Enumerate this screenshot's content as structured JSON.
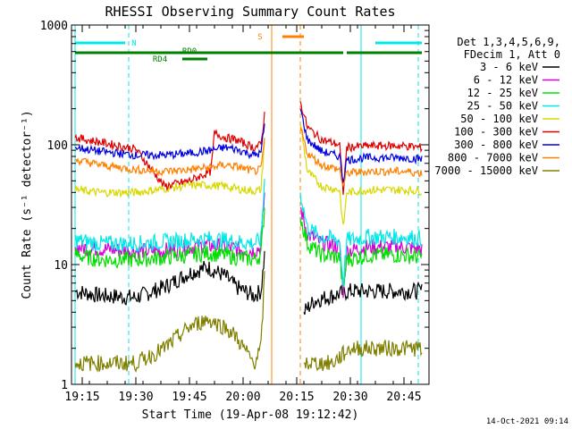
{
  "chart_data": {
    "type": "line",
    "title": "RHESSI Observing Summary Count Rates",
    "xlabel": "Start Time (19-Apr-08 19:12:42)",
    "ylabel": "Count Rate (s⁻¹ detector⁻¹)",
    "xscale": "time",
    "yscale": "log",
    "xlim": [
      "19:12",
      "20:52"
    ],
    "ylim": [
      1,
      1000
    ],
    "xticks": [
      "19:15",
      "19:30",
      "19:45",
      "20:00",
      "20:15",
      "20:30",
      "20:45"
    ],
    "yticks": [
      "1",
      "10",
      "100",
      "1000"
    ],
    "legend_header": [
      "Det 1,3,4,5,6,9,",
      "FDecim 1, Att 0"
    ],
    "legend_position": "right",
    "series": [
      {
        "name": "3 - 6 keV",
        "color": "#000000",
        "points": [
          [
            "19:13",
            6
          ],
          [
            "19:20",
            5.5
          ],
          [
            "19:30",
            5.3
          ],
          [
            "19:38",
            6.5
          ],
          [
            "19:45",
            8.5
          ],
          [
            "19:50",
            9.5
          ],
          [
            "19:55",
            8
          ],
          [
            "19:58",
            6.5
          ],
          [
            "20:03",
            5.5
          ],
          [
            "20:05",
            6
          ],
          [
            "20:06",
            12
          ],
          [
            "20:09",
            null
          ],
          [
            "20:15",
            null
          ],
          [
            "20:17",
            4
          ],
          [
            "20:20",
            5
          ],
          [
            "20:25",
            5.5
          ],
          [
            "20:30",
            6
          ],
          [
            "20:40",
            6
          ],
          [
            "20:50",
            6
          ]
        ]
      },
      {
        "name": "6 - 12 keV",
        "color": "#d800d8",
        "points": [
          [
            "19:13",
            14
          ],
          [
            "19:20",
            13.5
          ],
          [
            "19:30",
            13
          ],
          [
            "19:38",
            13
          ],
          [
            "19:45",
            14
          ],
          [
            "19:50",
            14.5
          ],
          [
            "19:55",
            14
          ],
          [
            "19:58",
            13.5
          ],
          [
            "20:03",
            13
          ],
          [
            "20:05",
            14
          ],
          [
            "20:06",
            40
          ],
          [
            "20:09",
            null
          ],
          [
            "20:15",
            null
          ],
          [
            "20:16",
            30
          ],
          [
            "20:18",
            18
          ],
          [
            "20:22",
            15
          ],
          [
            "20:27",
            14
          ],
          [
            "20:28",
            6
          ],
          [
            "20:29",
            13
          ],
          [
            "20:35",
            14
          ],
          [
            "20:45",
            14
          ],
          [
            "20:50",
            13.5
          ]
        ]
      },
      {
        "name": "12 - 25 keV",
        "color": "#00e000",
        "points": [
          [
            "19:13",
            12
          ],
          [
            "19:20",
            11
          ],
          [
            "19:30",
            11
          ],
          [
            "19:38",
            11.5
          ],
          [
            "19:45",
            12
          ],
          [
            "19:50",
            12.5
          ],
          [
            "19:55",
            12
          ],
          [
            "19:58",
            11.5
          ],
          [
            "20:03",
            11
          ],
          [
            "20:05",
            12
          ],
          [
            "20:06",
            30
          ],
          [
            "20:09",
            null
          ],
          [
            "20:15",
            null
          ],
          [
            "20:16",
            25
          ],
          [
            "20:18",
            15
          ],
          [
            "20:22",
            12
          ],
          [
            "20:27",
            11.5
          ],
          [
            "20:28",
            6
          ],
          [
            "20:29",
            11
          ],
          [
            "20:35",
            12
          ],
          [
            "20:45",
            12
          ],
          [
            "20:50",
            11.5
          ]
        ]
      },
      {
        "name": "25 - 50 keV",
        "color": "#00e8e8",
        "points": [
          [
            "19:13",
            16
          ],
          [
            "19:20",
            15
          ],
          [
            "19:30",
            15
          ],
          [
            "19:38",
            15.5
          ],
          [
            "19:45",
            16
          ],
          [
            "19:50",
            16.5
          ],
          [
            "19:55",
            16
          ],
          [
            "19:58",
            15.5
          ],
          [
            "20:03",
            15
          ],
          [
            "20:05",
            16
          ],
          [
            "20:06",
            50
          ],
          [
            "20:09",
            null
          ],
          [
            "20:15",
            null
          ],
          [
            "20:16",
            40
          ],
          [
            "20:18",
            20
          ],
          [
            "20:22",
            17
          ],
          [
            "20:27",
            16
          ],
          [
            "20:28",
            7
          ],
          [
            "20:29",
            16
          ],
          [
            "20:35",
            17
          ],
          [
            "20:45",
            17
          ],
          [
            "20:50",
            16.5
          ]
        ]
      },
      {
        "name": "50 - 100 keV",
        "color": "#d8d800",
        "points": [
          [
            "19:13",
            42
          ],
          [
            "19:20",
            40
          ],
          [
            "19:30",
            40
          ],
          [
            "19:38",
            43
          ],
          [
            "19:45",
            46
          ],
          [
            "19:50",
            46
          ],
          [
            "19:55",
            45
          ],
          [
            "19:58",
            43
          ],
          [
            "20:03",
            41
          ],
          [
            "20:05",
            42
          ],
          [
            "20:06",
            110
          ],
          [
            "20:09",
            null
          ],
          [
            "20:15",
            null
          ],
          [
            "20:16",
            150
          ],
          [
            "20:18",
            60
          ],
          [
            "20:22",
            45
          ],
          [
            "20:27",
            42
          ],
          [
            "20:28",
            20
          ],
          [
            "20:29",
            40
          ],
          [
            "20:35",
            42
          ],
          [
            "20:45",
            42
          ],
          [
            "20:50",
            41
          ]
        ]
      },
      {
        "name": "100 - 300 keV",
        "color": "#e00000",
        "points": [
          [
            "19:13",
            115
          ],
          [
            "19:20",
            105
          ],
          [
            "19:30",
            92
          ],
          [
            "19:38",
            45
          ],
          [
            "19:45",
            50
          ],
          [
            "19:51",
            60
          ],
          [
            "19:52",
            125
          ],
          [
            "19:55",
            115
          ],
          [
            "19:58",
            110
          ],
          [
            "20:03",
            95
          ],
          [
            "20:05",
            100
          ],
          [
            "20:06",
            180
          ],
          [
            "20:09",
            null
          ],
          [
            "20:15",
            null
          ],
          [
            "20:16",
            230
          ],
          [
            "20:18",
            140
          ],
          [
            "20:22",
            110
          ],
          [
            "20:27",
            100
          ],
          [
            "20:28",
            40
          ],
          [
            "20:29",
            95
          ],
          [
            "20:35",
            98
          ],
          [
            "20:45",
            98
          ],
          [
            "20:50",
            95
          ]
        ]
      },
      {
        "name": "300 - 800 keV",
        "color": "#0000e0",
        "points": [
          [
            "19:13",
            95
          ],
          [
            "19:20",
            88
          ],
          [
            "19:30",
            82
          ],
          [
            "19:38",
            82
          ],
          [
            "19:45",
            85
          ],
          [
            "19:51",
            90
          ],
          [
            "19:55",
            95
          ],
          [
            "19:58",
            92
          ],
          [
            "20:03",
            82
          ],
          [
            "20:05",
            85
          ],
          [
            "20:06",
            150
          ],
          [
            "20:09",
            null
          ],
          [
            "20:15",
            null
          ],
          [
            "20:16",
            200
          ],
          [
            "20:18",
            110
          ],
          [
            "20:22",
            88
          ],
          [
            "20:27",
            80
          ],
          [
            "20:28",
            50
          ],
          [
            "20:29",
            75
          ],
          [
            "20:35",
            78
          ],
          [
            "20:45",
            78
          ],
          [
            "20:50",
            76
          ]
        ]
      },
      {
        "name": "800 - 7000 keV",
        "color": "#ff8000",
        "points": [
          [
            "19:13",
            75
          ],
          [
            "19:20",
            68
          ],
          [
            "19:30",
            62
          ],
          [
            "19:38",
            60
          ],
          [
            "19:45",
            62
          ],
          [
            "19:51",
            65
          ],
          [
            "19:55",
            68
          ],
          [
            "19:58",
            66
          ],
          [
            "20:03",
            60
          ],
          [
            "20:05",
            62
          ],
          [
            "20:06",
            110
          ],
          [
            "20:09",
            null
          ],
          [
            "20:15",
            null
          ],
          [
            "20:16",
            140
          ],
          [
            "20:18",
            85
          ],
          [
            "20:22",
            68
          ],
          [
            "20:27",
            62
          ],
          [
            "20:28",
            45
          ],
          [
            "20:29",
            58
          ],
          [
            "20:35",
            60
          ],
          [
            "20:45",
            60
          ],
          [
            "20:50",
            58
          ]
        ]
      },
      {
        "name": "7000 - 15000 keV",
        "color": "#808000",
        "points": [
          [
            "19:13",
            1.5
          ],
          [
            "19:20",
            1.5
          ],
          [
            "19:30",
            1.5
          ],
          [
            "19:38",
            2
          ],
          [
            "19:45",
            3
          ],
          [
            "19:50",
            3.5
          ],
          [
            "19:55",
            3
          ],
          [
            "19:58",
            2.5
          ],
          [
            "20:03",
            1.5
          ],
          [
            "20:05",
            2
          ],
          [
            "20:06",
            8
          ],
          [
            "20:09",
            null
          ],
          [
            "20:15",
            null
          ],
          [
            "20:17",
            1.5
          ],
          [
            "20:20",
            1.5
          ],
          [
            "20:25",
            1.5
          ],
          [
            "20:30",
            2
          ],
          [
            "20:40",
            2
          ],
          [
            "20:50",
            2
          ]
        ]
      }
    ],
    "flags": [
      {
        "name": "N",
        "color": "#00e8e8",
        "intervals": [
          [
            "19:13",
            "19:27"
          ],
          [
            "20:37",
            "20:50"
          ]
        ]
      },
      {
        "name": "S",
        "color": "#ff8000",
        "intervals": [
          [
            "20:11",
            "20:17"
          ]
        ]
      },
      {
        "name": "RD0",
        "color": "#008000",
        "intervals": [
          [
            "19:13",
            "20:28"
          ],
          [
            "20:29",
            "20:50"
          ]
        ]
      },
      {
        "name": "RD4",
        "color": "#008000",
        "intervals": [
          [
            "19:43",
            "19:50"
          ]
        ]
      }
    ],
    "vertical_lines": [
      {
        "time": "19:13",
        "color": "#00e8e8",
        "style": "solid"
      },
      {
        "time": "19:28",
        "color": "#00e8e8",
        "style": "dashed"
      },
      {
        "time": "20:08",
        "color": "#ff8000",
        "style": "solid"
      },
      {
        "time": "20:16",
        "color": "#ff8000",
        "style": "dashed"
      },
      {
        "time": "20:33",
        "color": "#00e8e8",
        "style": "solid"
      },
      {
        "time": "20:49",
        "color": "#00e8e8",
        "style": "dashed"
      }
    ],
    "grid": false
  },
  "footer": {
    "timestamp": "14-Oct-2021 09:14"
  }
}
